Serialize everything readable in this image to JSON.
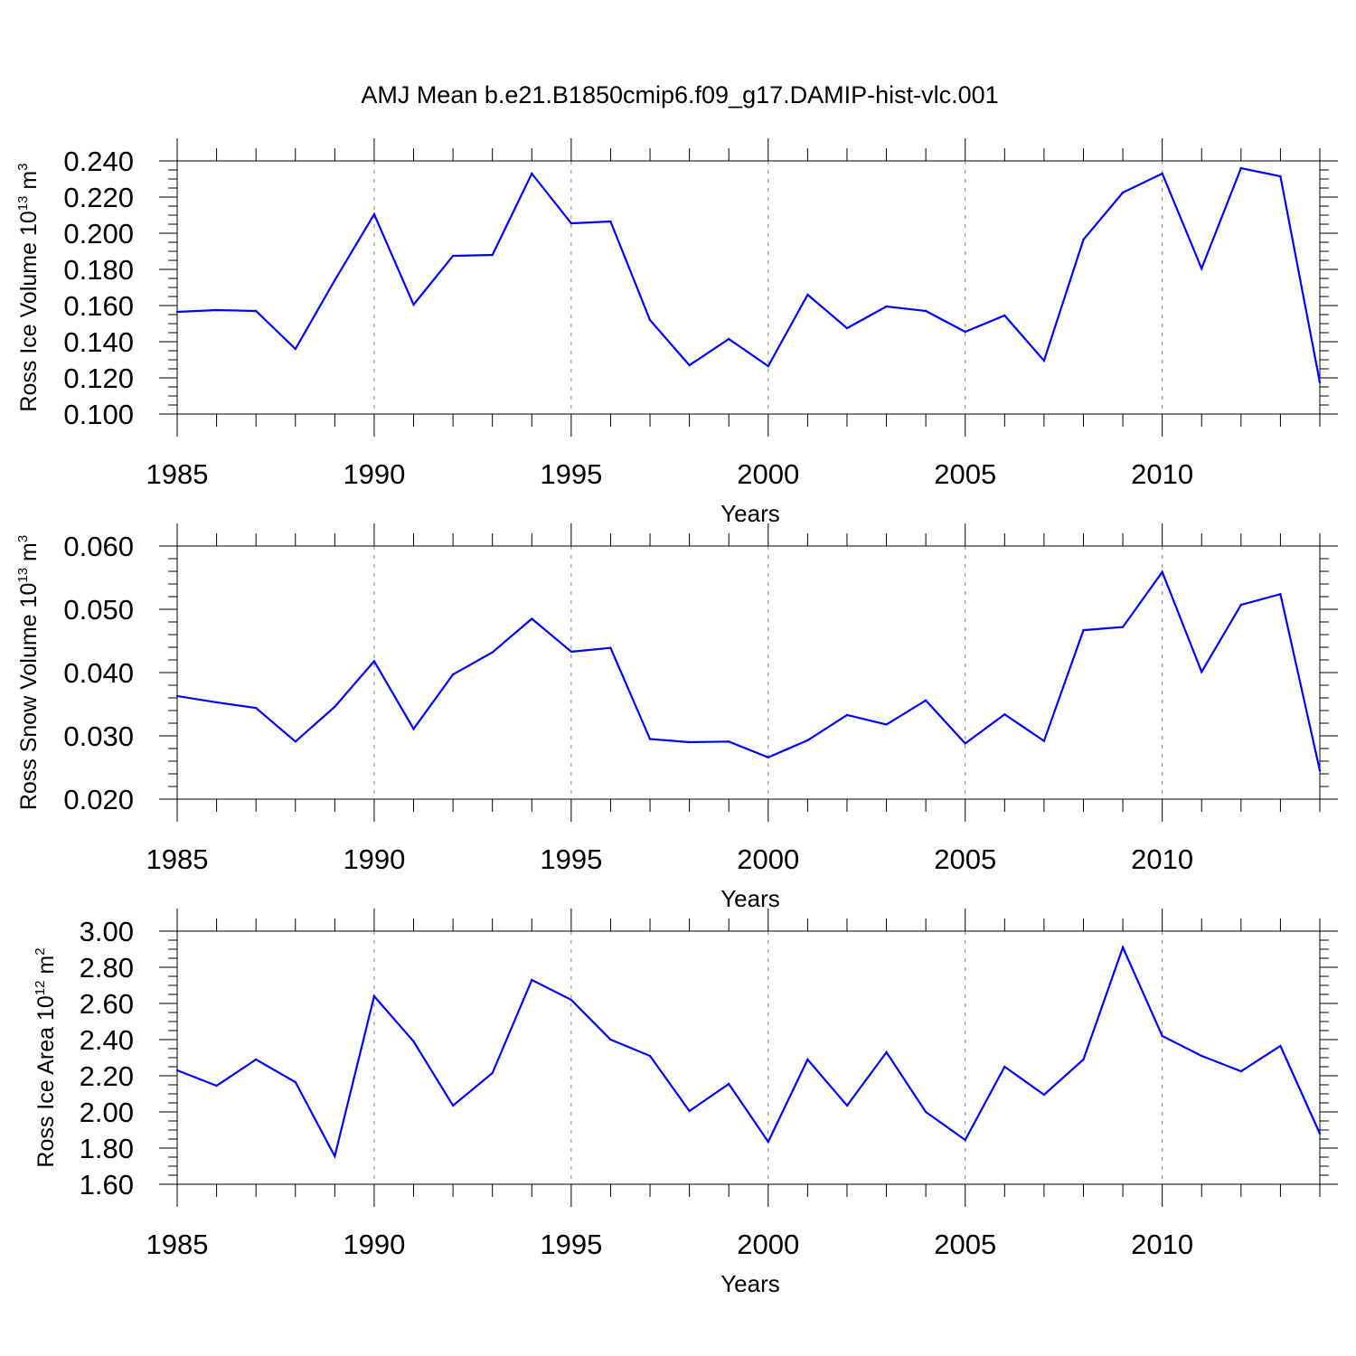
{
  "figure_title": "AMJ Mean b.e21.B1850cmip6.f09_g17.DAMIP-hist-vlc.001",
  "colors": {
    "series": "#0000ff",
    "axis": "#000000",
    "grid": "#888888"
  },
  "chart_data": [
    {
      "type": "line",
      "title": "AMJ Mean b.e21.B1850cmip6.f09_g17.DAMIP-hist-vlc.001",
      "ylabel_base": "Ross Ice Volume 10",
      "ylabel_exp": "13",
      "ylabel_unit": " m",
      "ylabel_unit_exp": "3",
      "xlabel": "Years",
      "xlim": [
        1985,
        2014
      ],
      "ylim": [
        0.1,
        0.24
      ],
      "grid": "vertical dashed at 5-year ticks",
      "x_ticks": [
        1985,
        1990,
        1995,
        2000,
        2005,
        2010
      ],
      "x_tick_labels": [
        "1985",
        "1990",
        "1995",
        "2000",
        "2005",
        "2010"
      ],
      "y_ticks": [
        0.1,
        0.12,
        0.14,
        0.16,
        0.18,
        0.2,
        0.22,
        0.24
      ],
      "y_tick_labels": [
        "0.100",
        "0.120",
        "0.140",
        "0.160",
        "0.180",
        "0.200",
        "0.220",
        "0.240"
      ],
      "y_minor_step": 0.005,
      "x": [
        1985,
        1986,
        1987,
        1988,
        1989,
        1990,
        1991,
        1992,
        1993,
        1994,
        1995,
        1996,
        1997,
        1998,
        1999,
        2000,
        2001,
        2002,
        2003,
        2004,
        2005,
        2006,
        2007,
        2008,
        2009,
        2010,
        2011,
        2012,
        2013,
        2014
      ],
      "series": [
        {
          "name": "Ross Ice Volume",
          "values": [
            0.1565,
            0.1575,
            0.157,
            0.136,
            0.174,
            0.2105,
            0.1605,
            0.1875,
            0.188,
            0.233,
            0.2055,
            0.2065,
            0.152,
            0.127,
            0.1415,
            0.1265,
            0.166,
            0.1475,
            0.1595,
            0.157,
            0.1455,
            0.1545,
            0.1295,
            0.1965,
            0.2225,
            0.233,
            0.1805,
            0.236,
            0.2315,
            0.1175
          ]
        }
      ]
    },
    {
      "type": "line",
      "ylabel_base": "Ross Snow Volume 10",
      "ylabel_exp": "13",
      "ylabel_unit": " m",
      "ylabel_unit_exp": "3",
      "xlabel": "Years",
      "xlim": [
        1985,
        2014
      ],
      "ylim": [
        0.02,
        0.06
      ],
      "grid": "vertical dashed at 5-year ticks",
      "x_ticks": [
        1985,
        1990,
        1995,
        2000,
        2005,
        2010
      ],
      "x_tick_labels": [
        "1985",
        "1990",
        "1995",
        "2000",
        "2005",
        "2010"
      ],
      "y_ticks": [
        0.02,
        0.03,
        0.04,
        0.05,
        0.06
      ],
      "y_tick_labels": [
        "0.020",
        "0.030",
        "0.040",
        "0.050",
        "0.060"
      ],
      "y_minor_step": 0.002,
      "x": [
        1985,
        1986,
        1987,
        1988,
        1989,
        1990,
        1991,
        1992,
        1993,
        1994,
        1995,
        1996,
        1997,
        1998,
        1999,
        2000,
        2001,
        2002,
        2003,
        2004,
        2005,
        2006,
        2007,
        2008,
        2009,
        2010,
        2011,
        2012,
        2013,
        2014
      ],
      "series": [
        {
          "name": "Ross Snow Volume",
          "values": [
            0.0363,
            0.0353,
            0.0344,
            0.0291,
            0.0346,
            0.0418,
            0.0311,
            0.0397,
            0.0432,
            0.0485,
            0.0433,
            0.0439,
            0.0295,
            0.029,
            0.0291,
            0.0266,
            0.0293,
            0.0333,
            0.0318,
            0.0356,
            0.0288,
            0.0334,
            0.0292,
            0.0467,
            0.0472,
            0.0559,
            0.0401,
            0.0507,
            0.0524,
            0.0245
          ]
        }
      ]
    },
    {
      "type": "line",
      "ylabel_base": "Ross Ice Area 10",
      "ylabel_exp": "12",
      "ylabel_unit": " m",
      "ylabel_unit_exp": "2",
      "xlabel": "Years",
      "xlim": [
        1985,
        2014
      ],
      "ylim": [
        1.6,
        3.0
      ],
      "grid": "vertical dashed at 5-year ticks",
      "x_ticks": [
        1985,
        1990,
        1995,
        2000,
        2005,
        2010
      ],
      "x_tick_labels": [
        "1985",
        "1990",
        "1995",
        "2000",
        "2005",
        "2010"
      ],
      "y_ticks": [
        1.6,
        1.8,
        2.0,
        2.2,
        2.4,
        2.6,
        2.8,
        3.0
      ],
      "y_tick_labels": [
        "1.60",
        "1.80",
        "2.00",
        "2.20",
        "2.40",
        "2.60",
        "2.80",
        "3.00"
      ],
      "y_minor_step": 0.05,
      "x": [
        1985,
        1986,
        1987,
        1988,
        1989,
        1990,
        1991,
        1992,
        1993,
        1994,
        1995,
        1996,
        1997,
        1998,
        1999,
        2000,
        2001,
        2002,
        2003,
        2004,
        2005,
        2006,
        2007,
        2008,
        2009,
        2010,
        2011,
        2012,
        2013,
        2014
      ],
      "series": [
        {
          "name": "Ross Ice Area",
          "values": [
            2.23,
            2.145,
            2.29,
            2.165,
            1.755,
            2.64,
            2.39,
            2.035,
            2.215,
            2.73,
            2.62,
            2.4,
            2.31,
            2.005,
            2.155,
            1.835,
            2.29,
            2.035,
            2.33,
            2.0,
            1.845,
            2.25,
            2.095,
            2.29,
            2.91,
            2.42,
            2.31,
            2.225,
            2.365,
            1.88
          ]
        }
      ]
    }
  ]
}
